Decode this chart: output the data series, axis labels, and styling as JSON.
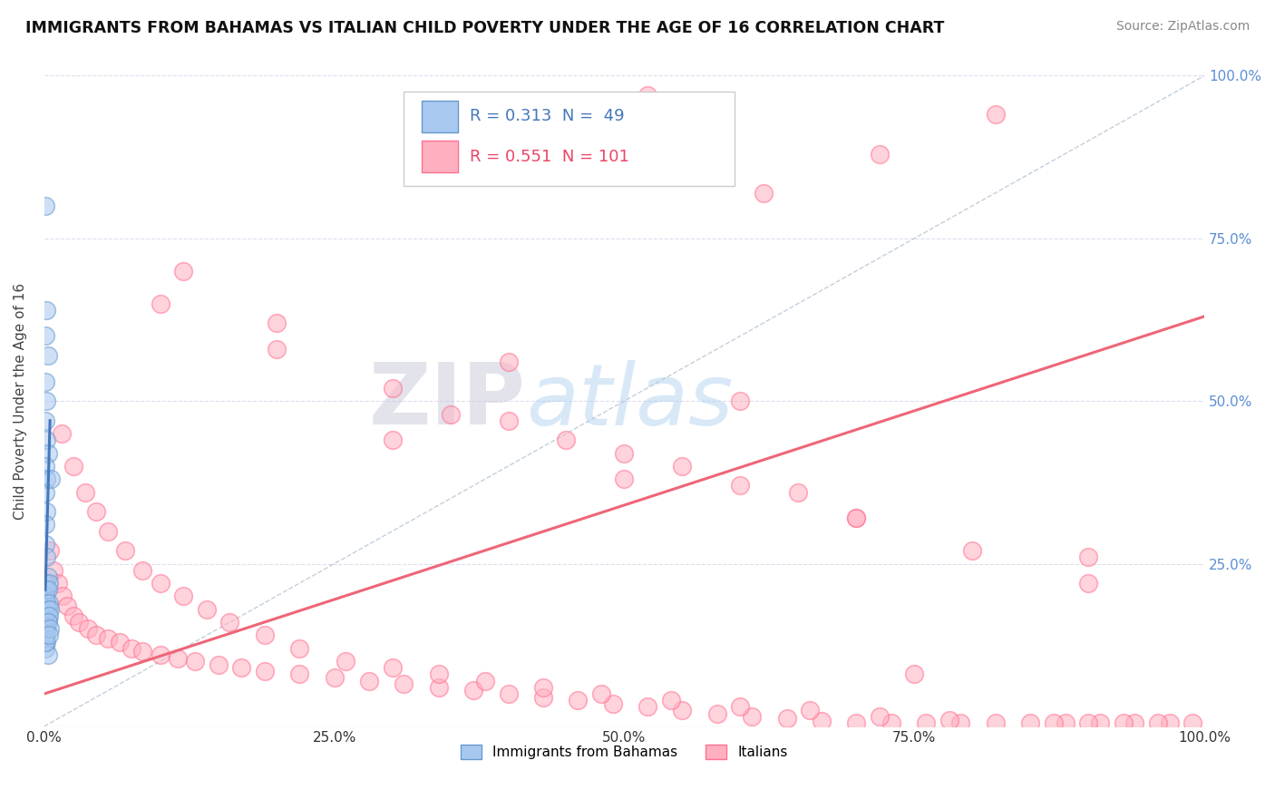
{
  "title": "IMMIGRANTS FROM BAHAMAS VS ITALIAN CHILD POVERTY UNDER THE AGE OF 16 CORRELATION CHART",
  "source": "Source: ZipAtlas.com",
  "ylabel": "Child Poverty Under the Age of 16",
  "xlim": [
    0,
    1.0
  ],
  "ylim": [
    0,
    1.0
  ],
  "xtick_labels": [
    "0.0%",
    "25.0%",
    "50.0%",
    "75.0%",
    "100.0%"
  ],
  "xtick_vals": [
    0.0,
    0.25,
    0.5,
    0.75,
    1.0
  ],
  "ytick_labels": [
    "25.0%",
    "50.0%",
    "75.0%",
    "100.0%"
  ],
  "ytick_vals": [
    0.25,
    0.5,
    0.75,
    1.0
  ],
  "legend_bottom": [
    {
      "label": "Immigrants from Bahamas",
      "color": "#A8C8F0"
    },
    {
      "label": "Italians",
      "color": "#FFB0C0"
    }
  ],
  "r_blue": "0.313",
  "n_blue": " 49",
  "r_pink": "0.551",
  "n_pink": "101",
  "blue_color": "#A8C8F0",
  "pink_color": "#FFB0C0",
  "blue_edge": "#6699CC",
  "pink_edge": "#FF7090",
  "trendline_blue_color": "#4477BB",
  "trendline_pink_color": "#EE6677",
  "diagonal_color": "#AABBCC",
  "background_color": "#FFFFFF",
  "watermark_zip": "ZIP",
  "watermark_atlas": "atlas",
  "grid_color": "#DDDDEE",
  "blue_scatter_x": [
    0.001,
    0.002,
    0.001,
    0.003,
    0.001,
    0.002,
    0.001,
    0.002,
    0.003,
    0.001,
    0.002,
    0.001,
    0.002,
    0.001,
    0.001,
    0.002,
    0.003,
    0.001,
    0.002,
    0.001,
    0.001,
    0.002,
    0.001,
    0.003,
    0.001,
    0.002,
    0.001,
    0.002,
    0.001,
    0.003,
    0.001,
    0.002,
    0.001,
    0.002,
    0.003,
    0.001,
    0.002,
    0.001,
    0.002,
    0.001,
    0.004,
    0.003,
    0.004,
    0.005,
    0.004,
    0.003,
    0.005,
    0.004,
    0.006
  ],
  "blue_scatter_y": [
    0.8,
    0.64,
    0.6,
    0.57,
    0.53,
    0.5,
    0.47,
    0.44,
    0.42,
    0.4,
    0.38,
    0.36,
    0.33,
    0.31,
    0.28,
    0.26,
    0.23,
    0.21,
    0.19,
    0.17,
    0.2,
    0.19,
    0.18,
    0.165,
    0.155,
    0.15,
    0.14,
    0.13,
    0.12,
    0.11,
    0.22,
    0.21,
    0.2,
    0.19,
    0.18,
    0.16,
    0.155,
    0.15,
    0.14,
    0.13,
    0.22,
    0.21,
    0.19,
    0.18,
    0.17,
    0.16,
    0.15,
    0.14,
    0.38
  ],
  "pink_scatter_x": [
    0.005,
    0.008,
    0.012,
    0.016,
    0.02,
    0.025,
    0.03,
    0.038,
    0.045,
    0.055,
    0.065,
    0.075,
    0.085,
    0.1,
    0.115,
    0.13,
    0.15,
    0.17,
    0.19,
    0.22,
    0.25,
    0.28,
    0.31,
    0.34,
    0.37,
    0.4,
    0.43,
    0.46,
    0.49,
    0.52,
    0.55,
    0.58,
    0.61,
    0.64,
    0.67,
    0.7,
    0.73,
    0.76,
    0.79,
    0.82,
    0.85,
    0.88,
    0.91,
    0.94,
    0.97,
    0.99,
    0.96,
    0.93,
    0.9,
    0.87,
    0.015,
    0.025,
    0.035,
    0.045,
    0.055,
    0.07,
    0.085,
    0.1,
    0.12,
    0.14,
    0.16,
    0.19,
    0.22,
    0.26,
    0.3,
    0.34,
    0.38,
    0.43,
    0.48,
    0.54,
    0.6,
    0.66,
    0.72,
    0.78,
    0.35,
    0.45,
    0.55,
    0.65,
    0.2,
    0.3,
    0.4,
    0.5,
    0.6,
    0.7,
    0.8,
    0.9,
    0.1,
    0.2,
    0.4,
    0.6,
    0.3,
    0.5,
    0.7,
    0.9,
    0.12,
    0.75,
    0.62,
    0.72,
    0.82,
    0.52
  ],
  "pink_scatter_y": [
    0.27,
    0.24,
    0.22,
    0.2,
    0.185,
    0.17,
    0.16,
    0.15,
    0.14,
    0.135,
    0.13,
    0.12,
    0.115,
    0.11,
    0.105,
    0.1,
    0.095,
    0.09,
    0.085,
    0.08,
    0.075,
    0.07,
    0.065,
    0.06,
    0.055,
    0.05,
    0.045,
    0.04,
    0.035,
    0.03,
    0.025,
    0.02,
    0.015,
    0.012,
    0.008,
    0.006,
    0.005,
    0.005,
    0.005,
    0.005,
    0.005,
    0.005,
    0.005,
    0.005,
    0.005,
    0.005,
    0.005,
    0.005,
    0.005,
    0.005,
    0.45,
    0.4,
    0.36,
    0.33,
    0.3,
    0.27,
    0.24,
    0.22,
    0.2,
    0.18,
    0.16,
    0.14,
    0.12,
    0.1,
    0.09,
    0.08,
    0.07,
    0.06,
    0.05,
    0.04,
    0.03,
    0.025,
    0.015,
    0.01,
    0.48,
    0.44,
    0.4,
    0.36,
    0.58,
    0.52,
    0.47,
    0.42,
    0.37,
    0.32,
    0.27,
    0.22,
    0.65,
    0.62,
    0.56,
    0.5,
    0.44,
    0.38,
    0.32,
    0.26,
    0.7,
    0.08,
    0.82,
    0.88,
    0.94,
    0.97
  ],
  "pink_trendline_x0": 0.0,
  "pink_trendline_y0": 0.05,
  "pink_trendline_x1": 1.0,
  "pink_trendline_y1": 0.63,
  "blue_trendline_x0": 0.001,
  "blue_trendline_y0": 0.21,
  "blue_trendline_x1": 0.005,
  "blue_trendline_y1": 0.47
}
